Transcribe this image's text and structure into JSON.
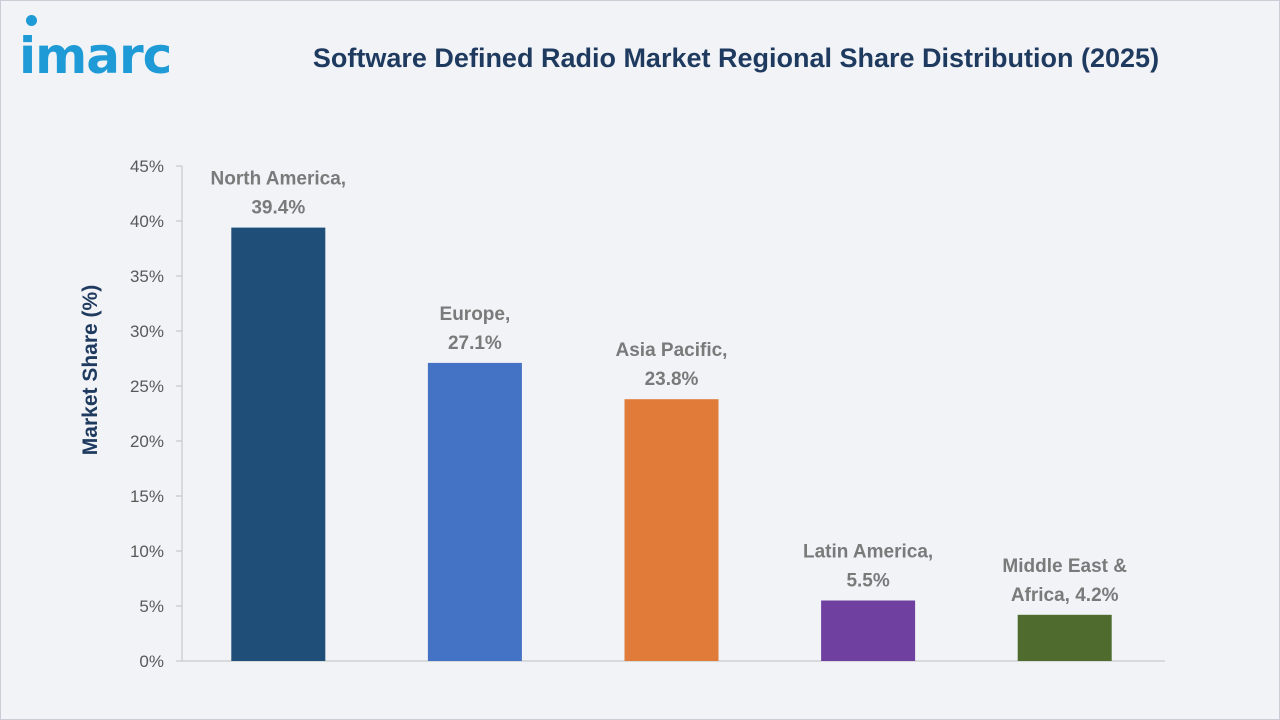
{
  "header": {
    "logo_text": "imarc",
    "title": "Software Defined Radio Market Regional Share Distribution (2025)"
  },
  "colors": {
    "logo": "#1e9ad6",
    "title": "#1f3a5f",
    "background": "#f1f3f7"
  },
  "chart_data": {
    "type": "bar",
    "title": "Software Defined Radio Market Regional Share Distribution (2025)",
    "xlabel": "",
    "ylabel": "Market Share (%)",
    "ylim": [
      0,
      45
    ],
    "yticks": [
      0,
      5,
      10,
      15,
      20,
      25,
      30,
      35,
      40,
      45
    ],
    "ytick_labels": [
      "0%",
      "5%",
      "10%",
      "15%",
      "20%",
      "25%",
      "30%",
      "35%",
      "40%",
      "45%"
    ],
    "grid": false,
    "legend": "none",
    "categories": [
      "North America",
      "Europe",
      "Asia Pacific",
      "Latin America",
      "Middle East & Africa"
    ],
    "values": [
      39.4,
      27.1,
      23.8,
      5.5,
      4.2
    ],
    "data_labels": [
      [
        "North America,",
        "39.4%"
      ],
      [
        "Europe,",
        "27.1%"
      ],
      [
        "Asia Pacific,",
        "23.8%"
      ],
      [
        "Latin America,",
        "5.5%"
      ],
      [
        "Middle East &",
        "Africa, 4.2%"
      ]
    ],
    "colors": [
      "#1f4e79",
      "#4472c4",
      "#e07b39",
      "#7040a0",
      "#4f6b2e"
    ]
  }
}
